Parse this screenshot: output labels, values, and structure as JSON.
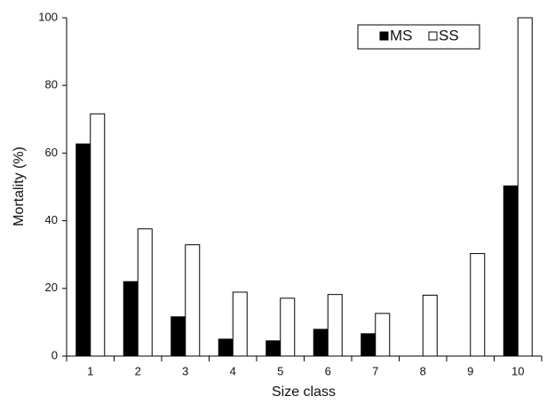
{
  "chart_data": {
    "type": "bar",
    "x_label": "Size class",
    "y_label": "Mortality (%)",
    "categories": [
      "1",
      "2",
      "3",
      "4",
      "5",
      "6",
      "7",
      "8",
      "9",
      "10"
    ],
    "series": [
      {
        "name": "MS",
        "color": "#000000",
        "values": [
          62.7,
          22,
          11.6,
          5,
          4.5,
          7.9,
          6.6,
          null,
          null,
          50.3
        ]
      },
      {
        "name": "SS",
        "color": "#ffffff",
        "values": [
          71.6,
          37.6,
          32.9,
          18.9,
          17.1,
          18.2,
          12.6,
          18,
          30.3,
          100
        ]
      }
    ],
    "ylim": [
      0,
      100
    ],
    "yticks": [
      0,
      20,
      40,
      60,
      80,
      100
    ],
    "grid": false,
    "legend": "upper right"
  }
}
